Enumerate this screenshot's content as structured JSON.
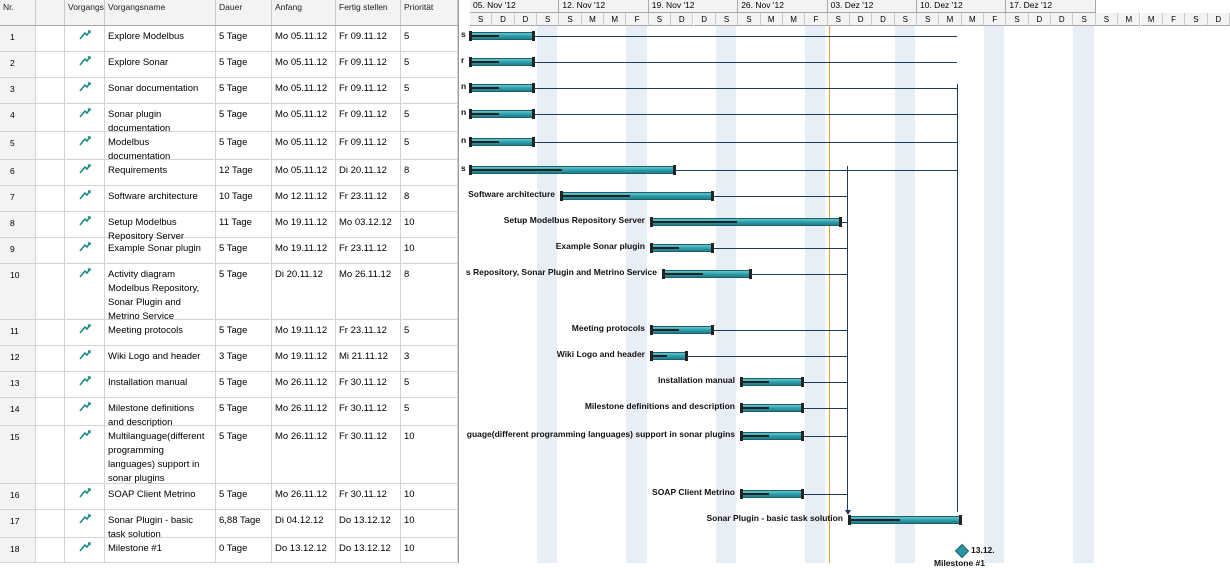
{
  "headers": {
    "nr": "Nr.",
    "mode": "Vorgangs",
    "name": "Vorgangsname",
    "duration": "Dauer",
    "start": "Anfang",
    "finish": "Fertig stellen",
    "priority": "Priorität"
  },
  "tasks": [
    {
      "nr": "1",
      "name": "Explore Modelbus",
      "duration": "5 Tage",
      "start": "Mo 05.11.12",
      "finish": "Fr 09.11.12",
      "priority": "5",
      "bar_label": "s"
    },
    {
      "nr": "2",
      "name": "Explore Sonar",
      "duration": "5 Tage",
      "start": "Mo 05.11.12",
      "finish": "Fr 09.11.12",
      "priority": "5",
      "bar_label": "r"
    },
    {
      "nr": "3",
      "name": "Sonar documentation",
      "duration": "5 Tage",
      "start": "Mo 05.11.12",
      "finish": "Fr 09.11.12",
      "priority": "5",
      "bar_label": "n"
    },
    {
      "nr": "4",
      "name": "Sonar plugin documentation",
      "duration": "5 Tage",
      "start": "Mo 05.11.12",
      "finish": "Fr 09.11.12",
      "priority": "5",
      "bar_label": "n"
    },
    {
      "nr": "5",
      "name": "Modelbus documentation",
      "duration": "5 Tage",
      "start": "Mo 05.11.12",
      "finish": "Fr 09.11.12",
      "priority": "5",
      "bar_label": "n"
    },
    {
      "nr": "6",
      "name": "Requirements",
      "duration": "12 Tage",
      "start": "Mo 05.11.12",
      "finish": "Di 20.11.12",
      "priority": "8",
      "bar_label": "s"
    },
    {
      "nr": "7",
      "name": "Software architecture",
      "duration": "10 Tage",
      "start": "Mo 12.11.12",
      "finish": "Fr 23.11.12",
      "priority": "8",
      "bar_label": "Software architecture"
    },
    {
      "nr": "8",
      "name": "Setup Modelbus Repository Server",
      "duration": "11 Tage",
      "start": "Mo 19.11.12",
      "finish": "Mo 03.12.12",
      "priority": "10",
      "bar_label": "Setup Modelbus Repository Server"
    },
    {
      "nr": "9",
      "name": "Example Sonar plugin",
      "duration": "5 Tage",
      "start": "Mo 19.11.12",
      "finish": "Fr 23.11.12",
      "priority": "10",
      "bar_label": "Example Sonar plugin"
    },
    {
      "nr": "10",
      "name": "Activity diagram Modelbus Repository, Sonar Plugin and Metrino Service",
      "duration": "5 Tage",
      "start": "Di 20.11.12",
      "finish": "Mo 26.11.12",
      "priority": "8",
      "bar_label": "s Repository, Sonar Plugin and Metrino Service"
    },
    {
      "nr": "11",
      "name": "Meeting protocols",
      "duration": "5 Tage",
      "start": "Mo 19.11.12",
      "finish": "Fr 23.11.12",
      "priority": "5",
      "bar_label": "Meeting protocols"
    },
    {
      "nr": "12",
      "name": "Wiki Logo and header",
      "duration": "3 Tage",
      "start": "Mo 19.11.12",
      "finish": "Mi 21.11.12",
      "priority": "3",
      "bar_label": "Wiki Logo and header"
    },
    {
      "nr": "13",
      "name": "Installation manual",
      "duration": "5 Tage",
      "start": "Mo 26.11.12",
      "finish": "Fr 30.11.12",
      "priority": "5",
      "bar_label": "Installation manual"
    },
    {
      "nr": "14",
      "name": "Milestone definitions and description",
      "duration": "5 Tage",
      "start": "Mo 26.11.12",
      "finish": "Fr 30.11.12",
      "priority": "5",
      "bar_label": "Milestone definitions and description"
    },
    {
      "nr": "15",
      "name": "Multilanguage(different programming languages) support in sonar plugins",
      "duration": "5 Tage",
      "start": "Mo 26.11.12",
      "finish": "Fr 30.11.12",
      "priority": "10",
      "bar_label": "guage(different programming languages) support in sonar plugins"
    },
    {
      "nr": "16",
      "name": "SOAP Client Metrino",
      "duration": "5 Tage",
      "start": "Mo 26.11.12",
      "finish": "Fr 30.11.12",
      "priority": "10",
      "bar_label": "SOAP Client Metrino"
    },
    {
      "nr": "17",
      "name": "Sonar Plugin - basic task solution",
      "duration": "6,88 Tage",
      "start": "Di 04.12.12",
      "finish": "Do 13.12.12",
      "priority": "10",
      "bar_label": "Sonar Plugin - basic task solution"
    },
    {
      "nr": "18",
      "name": "Milestone #1",
      "duration": "0 Tage",
      "start": "Do 13.12.12",
      "finish": "Do 13.12.12",
      "priority": "10",
      "bar_label": "13.12.",
      "milestone_label": "Milestone #1"
    }
  ],
  "timescale": {
    "weeks": [
      "05. Nov '12",
      "12. Nov '12",
      "19. Nov '12",
      "26. Nov '12",
      "03. Dez '12",
      "10. Dez '12",
      "17. Dez '12"
    ],
    "days": [
      "S",
      "D",
      "D",
      "S",
      "S",
      "M",
      "M",
      "F",
      "S",
      "D",
      "D",
      "S",
      "S",
      "M",
      "M",
      "F",
      "S",
      "D",
      "D",
      "S",
      "S",
      "M",
      "M",
      "F",
      "S",
      "D",
      "D",
      "S",
      "S",
      "M",
      "M",
      "F",
      "S",
      "D"
    ]
  },
  "colors": {
    "bar": "#2b96a3",
    "today_line": "#e0a040",
    "link": "#1b3a5c",
    "weekend": "#e8eef5"
  }
}
